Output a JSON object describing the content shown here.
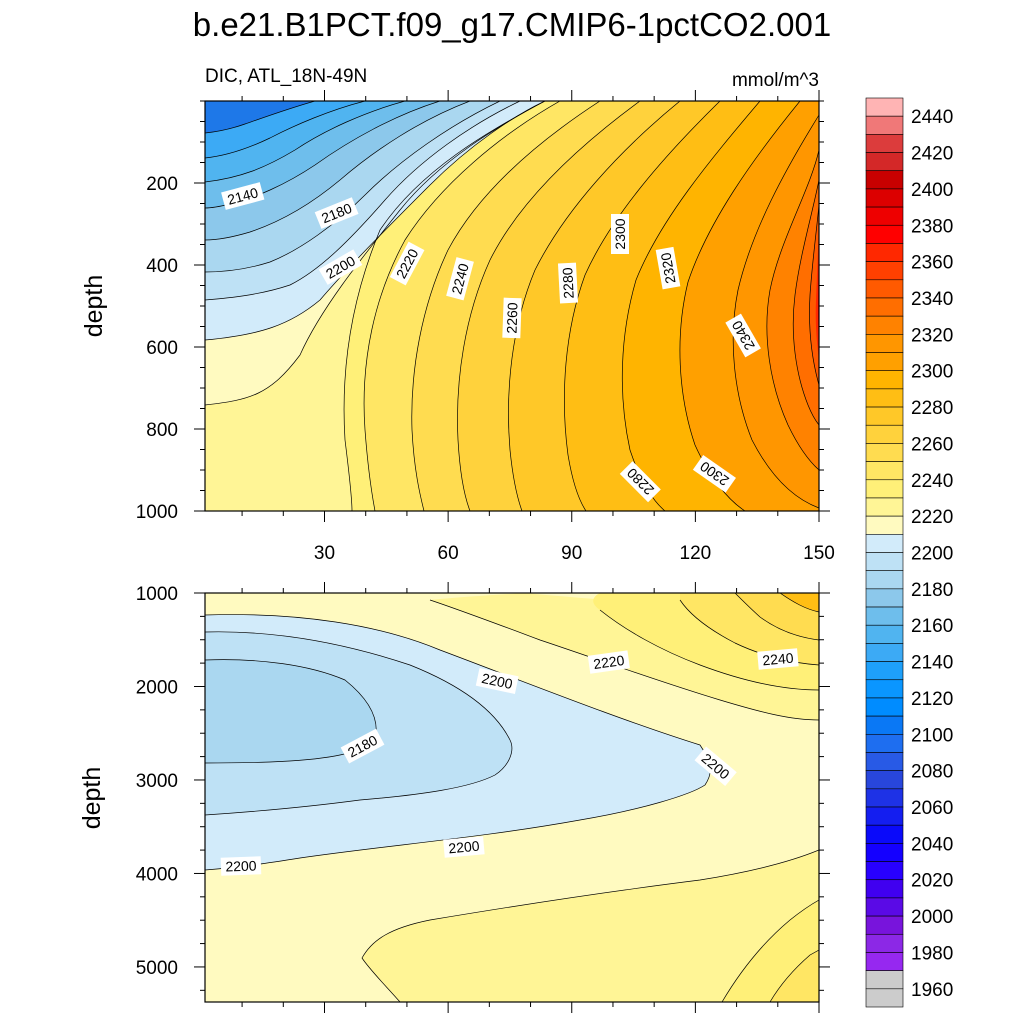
{
  "chart_data": {
    "type": "heatmap",
    "title": "b.e21.B1PCT.f09_g17.CMIP6-1pctCO2.001",
    "left_string": "DIC, ATL_18N-49N",
    "right_string": "mmol/m^3",
    "colors": {
      "c2440": "#ffb4b4",
      "c2430": "#f07878",
      "c2420": "#dc3c3c",
      "c2410": "#d42828",
      "c2400": "#c80000",
      "c2390": "#dc0000",
      "c2380": "#ee0000",
      "c2370": "#ff0000",
      "c2360": "#ff2800",
      "c2350": "#ff4000",
      "c2340": "#ff5a00",
      "c2330": "#ff6e00",
      "c2320": "#ff8200",
      "c2310": "#ff9600",
      "c2300": "#ffa000",
      "c2290": "#ffb400",
      "c2280": "#ffbe14",
      "c2270": "#ffc828",
      "c2260": "#ffd23c",
      "c2250": "#ffdc50",
      "c2240": "#ffe664",
      "c2230": "#fff078",
      "c2220": "#fff596",
      "c2210": "#fffac0",
      "c2200": "#d2ebfa",
      "c2190": "#bee1f5",
      "c2180": "#aad7f0",
      "c2170": "#8cc8eb",
      "c2160": "#6ebeec",
      "c2150": "#50b4f0",
      "c2140": "#3caaf5",
      "c2130": "#1ea0fa",
      "c2120": "#0a96ff",
      "c2110": "#008cff",
      "c2100": "#0a78f5",
      "c2090": "#1e6ef0",
      "c2080": "#285ae6",
      "c2070": "#2846dc",
      "c2060": "#1e32e6",
      "c2050": "#141ef0",
      "c2040": "#0a0afa",
      "c2030": "#1400ff",
      "c2020": "#2800ff",
      "c2010": "#4000f0",
      "c2000": "#5a0ae6",
      "c1990": "#7814dc",
      "c1980": "#8c28e6",
      "c1970": "#9628f0"
    },
    "colorbar": {
      "min": 1950,
      "max": 2450,
      "step": 10,
      "labels": [
        "2440",
        "2420",
        "2400",
        "2380",
        "2360",
        "2340",
        "2320",
        "2300",
        "2280",
        "2260",
        "2240",
        "2220",
        "2200",
        "2180",
        "2160",
        "2140",
        "2120",
        "2100",
        "2080",
        "2060",
        "2040",
        "2020",
        "2000",
        "1980",
        "1960"
      ]
    },
    "upper_panel": {
      "ylabel": "depth",
      "x_tick_labels": [
        "30",
        "60",
        "90",
        "120",
        "150"
      ],
      "y_tick_labels": [
        "200",
        "400",
        "600",
        "800",
        "1000"
      ],
      "x_ticks": [
        30,
        60,
        90,
        120,
        150
      ],
      "y_ticks": [
        200,
        400,
        600,
        800,
        1000
      ],
      "xlim": [
        1,
        150
      ],
      "ylim": [
        0,
        1000
      ],
      "contour_labels": [
        "2140",
        "2180",
        "2200",
        "2220",
        "2240",
        "2260",
        "2280",
        "2300",
        "2320",
        "2340",
        "2280",
        "2300"
      ]
    },
    "lower_panel": {
      "ylabel": "depth",
      "y_tick_labels": [
        "1000",
        "2000",
        "3000",
        "4000",
        "5000"
      ],
      "y_ticks": [
        1000,
        2000,
        3000,
        4000,
        5000
      ],
      "xlim": [
        1,
        150
      ],
      "ylim": [
        1000,
        5375
      ],
      "contour_labels": [
        "2220",
        "2240",
        "2200",
        "2180",
        "2200",
        "2200",
        "2200"
      ]
    }
  }
}
